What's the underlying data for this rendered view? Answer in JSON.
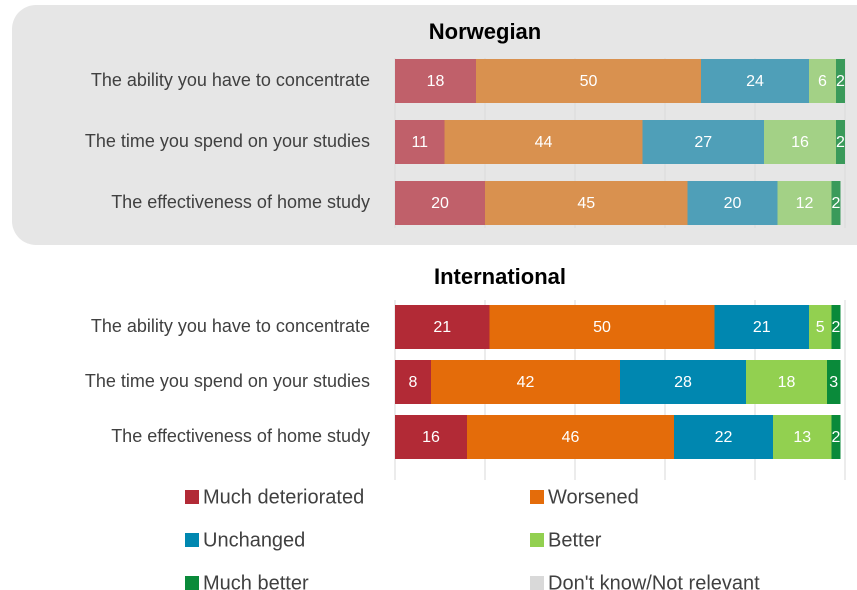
{
  "chart_data": [
    {
      "type": "bar",
      "title": "Norwegian",
      "categories": [
        "The ability you have to concentrate",
        "The time you spend on your studies",
        "The effectiveness of home study"
      ],
      "series": [
        {
          "name": "Much deteriorated",
          "color": "#c0606a",
          "values": [
            18,
            11,
            20
          ]
        },
        {
          "name": "Worsened",
          "color": "#d9914f",
          "values": [
            50,
            44,
            45
          ]
        },
        {
          "name": "Unchanged",
          "color": "#4f9fb8",
          "values": [
            24,
            27,
            20
          ]
        },
        {
          "name": "Better",
          "color": "#a3d186",
          "values": [
            6,
            16,
            12
          ]
        },
        {
          "name": "Much better",
          "color": "#3a9a5a",
          "values": [
            2,
            2,
            2
          ]
        },
        {
          "name": "Don't know/Not relevant",
          "color": "#d9d9d9",
          "values": [
            0,
            0,
            0
          ]
        }
      ],
      "xlim": [
        0,
        100
      ],
      "xticks": [
        0,
        20,
        40,
        60,
        80,
        100
      ],
      "grid": true
    },
    {
      "type": "bar",
      "title": "International",
      "categories": [
        "The ability you have to concentrate",
        "The time you spend on your studies",
        "The effectiveness of home study"
      ],
      "series": [
        {
          "name": "Much deteriorated",
          "color": "#b22a36",
          "values": [
            21,
            8,
            16
          ]
        },
        {
          "name": "Worsened",
          "color": "#e46c0a",
          "values": [
            50,
            42,
            46
          ]
        },
        {
          "name": "Unchanged",
          "color": "#0087b0",
          "values": [
            21,
            28,
            22
          ]
        },
        {
          "name": "Better",
          "color": "#92d050",
          "values": [
            5,
            18,
            13
          ]
        },
        {
          "name": "Much better",
          "color": "#0a8a3a",
          "values": [
            2,
            3,
            2
          ]
        },
        {
          "name": "Don't know/Not relevant",
          "color": "#d9d9d9",
          "values": [
            0,
            0,
            0
          ]
        }
      ],
      "xlim": [
        0,
        100
      ],
      "xticks": [
        0,
        20,
        40,
        60,
        80,
        100
      ],
      "grid": true,
      "legend": "bottom"
    }
  ]
}
